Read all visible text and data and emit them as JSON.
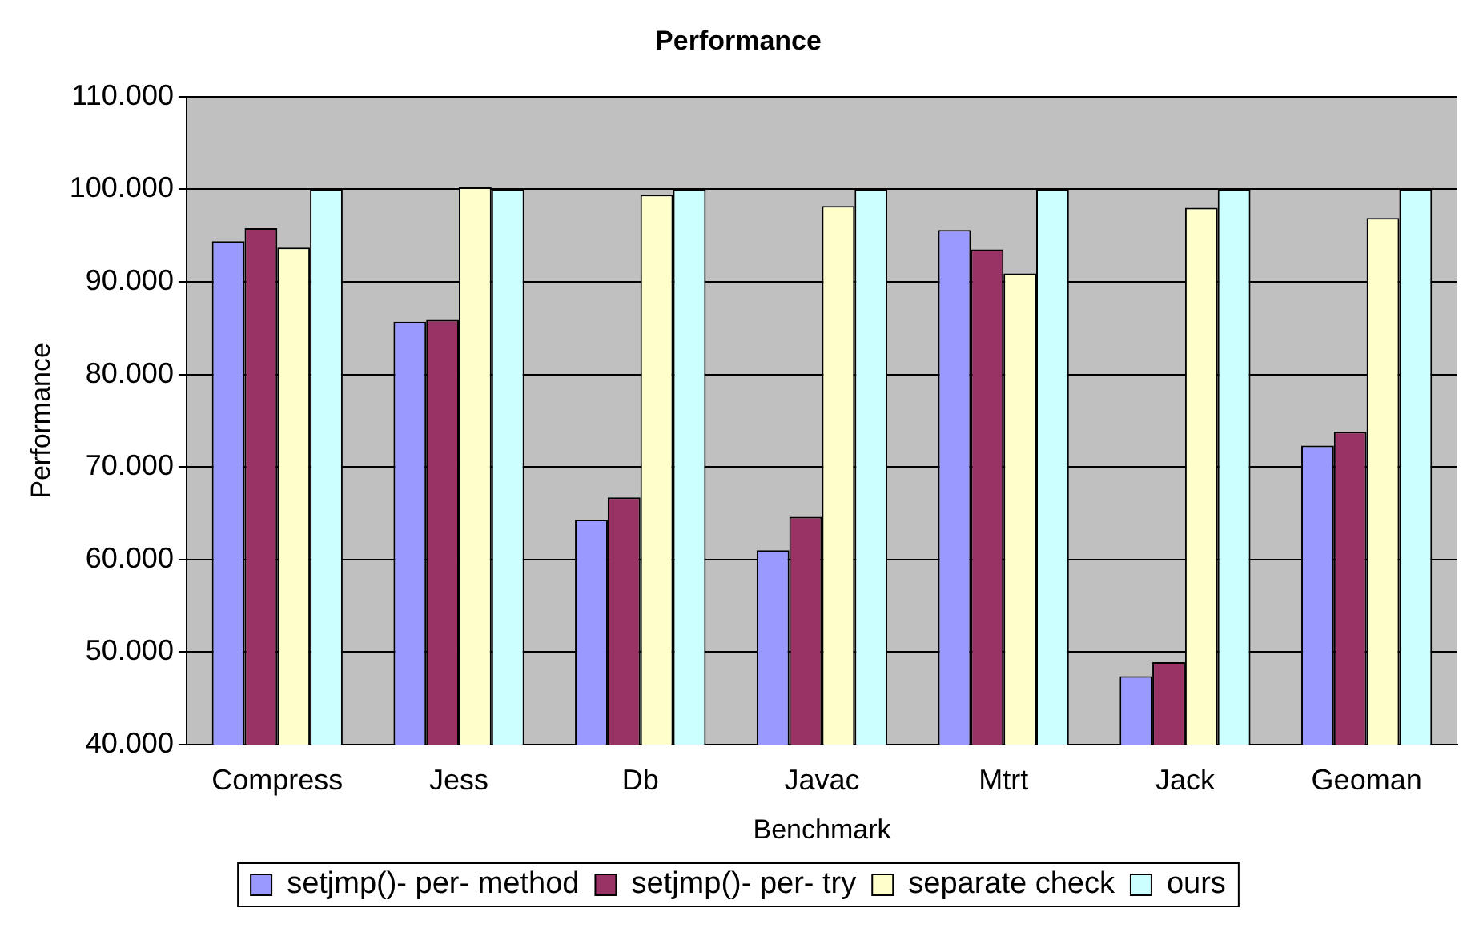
{
  "chart_data": {
    "type": "bar",
    "title": "Performance",
    "xlabel": "Benchmark",
    "ylabel": "Performance",
    "categories": [
      "Compress",
      "Jess",
      "Db",
      "Javac",
      "Mtrt",
      "Jack",
      "Geoman"
    ],
    "series": [
      {
        "name": "setjmp()- per- method",
        "color": "#9999ff",
        "values": [
          94.4,
          85.7,
          64.3,
          61.0,
          95.6,
          47.4,
          72.3
        ]
      },
      {
        "name": "setjmp()- per- try",
        "color": "#993366",
        "values": [
          95.8,
          85.9,
          66.7,
          64.6,
          93.5,
          48.9,
          73.8
        ]
      },
      {
        "name": "separate check",
        "color": "#ffffcc",
        "values": [
          93.7,
          100.2,
          99.4,
          98.2,
          90.9,
          98.0,
          96.9
        ]
      },
      {
        "name": "ours",
        "color": "#ccffff",
        "values": [
          100,
          100,
          100,
          100,
          100,
          100,
          100
        ]
      }
    ],
    "ylim": [
      40,
      110
    ],
    "yticks": [
      {
        "value": 40,
        "label": "40.000"
      },
      {
        "value": 50,
        "label": "50.000"
      },
      {
        "value": 60,
        "label": "60.000"
      },
      {
        "value": 70,
        "label": "70.000"
      },
      {
        "value": 80,
        "label": "80.000"
      },
      {
        "value": 90,
        "label": "90.000"
      },
      {
        "value": 100,
        "label": "100.000"
      },
      {
        "value": 110,
        "label": "110.000"
      }
    ],
    "grid": "y",
    "legend": "bottom"
  }
}
